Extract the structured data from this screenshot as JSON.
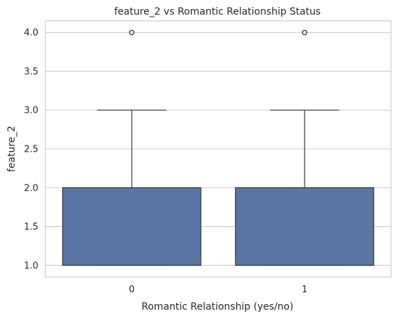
{
  "chart_data": {
    "type": "box",
    "title": "feature_2 vs Romantic Relationship Status",
    "xlabel": "Romantic Relationship (yes/no)",
    "ylabel": "feature_2",
    "categories": [
      "0",
      "1"
    ],
    "ylim": [
      0.85,
      4.15
    ],
    "yticks": [
      1.0,
      1.5,
      2.0,
      2.5,
      3.0,
      3.5,
      4.0
    ],
    "ytick_labels": [
      "1.0",
      "1.5",
      "2.0",
      "2.5",
      "3.0",
      "3.5",
      "4.0"
    ],
    "grid": "horizontal",
    "boxes": [
      {
        "category": "0",
        "whisker_low": 1.0,
        "q1": 1.0,
        "median": 1.0,
        "q3": 2.0,
        "whisker_high": 3.0,
        "outliers": [
          4.0
        ]
      },
      {
        "category": "1",
        "whisker_low": 1.0,
        "q1": 1.0,
        "median": 1.0,
        "q3": 2.0,
        "whisker_high": 3.0,
        "outliers": [
          4.0
        ]
      }
    ],
    "colors": {
      "box_fill": "#5975a4",
      "line": "#404040",
      "grid": "#cccccc",
      "spine": "#cccccc"
    }
  }
}
